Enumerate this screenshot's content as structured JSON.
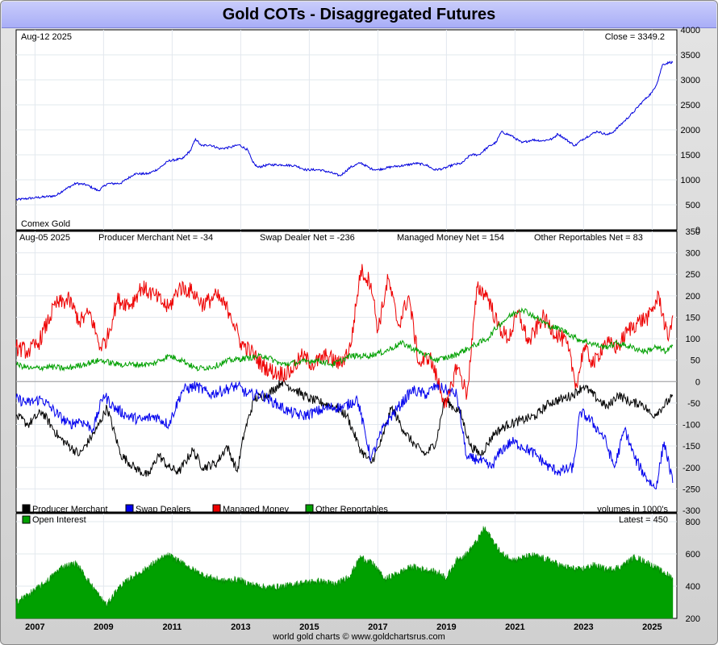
{
  "page": {
    "title": "Gold COTs - Disaggregated Futures",
    "credit": "world gold charts © www.goldchartsrus.com"
  },
  "chart_data": [
    {
      "id": "price",
      "type": "line",
      "date_label": "Aug-12  2025",
      "close_label": "Close = 3349.2",
      "series_label": "Comex Gold",
      "ylim": [
        0,
        4000
      ],
      "yticks": [
        0,
        500,
        1000,
        1500,
        2000,
        2500,
        3000,
        3500,
        4000
      ],
      "xlim": [
        2006.45,
        2025.72
      ],
      "color": "#0000dd",
      "series": [
        {
          "name": "Comex Gold",
          "x": [
            2006.45,
            2006.7,
            2007.0,
            2007.3,
            2007.6,
            2007.85,
            2008.2,
            2008.5,
            2008.85,
            2009.1,
            2009.5,
            2009.9,
            2010.3,
            2010.6,
            2010.9,
            2011.3,
            2011.55,
            2011.68,
            2011.85,
            2012.1,
            2012.4,
            2012.7,
            2012.95,
            2013.2,
            2013.35,
            2013.5,
            2013.8,
            2014.2,
            2014.6,
            2014.9,
            2015.3,
            2015.6,
            2015.9,
            2016.2,
            2016.5,
            2016.8,
            2017.0,
            2017.4,
            2017.8,
            2018.1,
            2018.4,
            2018.65,
            2018.9,
            2019.2,
            2019.45,
            2019.7,
            2019.95,
            2020.2,
            2020.45,
            2020.6,
            2020.9,
            2021.2,
            2021.5,
            2021.8,
            2022.1,
            2022.25,
            2022.5,
            2022.75,
            2022.95,
            2023.2,
            2023.4,
            2023.7,
            2023.85,
            2024.0,
            2024.2,
            2024.45,
            2024.7,
            2024.85,
            2025.0,
            2025.15,
            2025.3,
            2025.5,
            2025.6
          ],
          "y": [
            600,
            620,
            640,
            660,
            680,
            800,
            930,
            900,
            780,
            920,
            930,
            1120,
            1120,
            1220,
            1380,
            1420,
            1600,
            1820,
            1680,
            1700,
            1620,
            1650,
            1700,
            1600,
            1350,
            1250,
            1300,
            1300,
            1280,
            1200,
            1200,
            1150,
            1080,
            1250,
            1340,
            1220,
            1200,
            1260,
            1290,
            1330,
            1300,
            1200,
            1220,
            1300,
            1330,
            1500,
            1500,
            1650,
            1750,
            1960,
            1880,
            1740,
            1800,
            1780,
            1820,
            1920,
            1800,
            1680,
            1800,
            1900,
            1970,
            1900,
            1950,
            2050,
            2180,
            2350,
            2550,
            2650,
            2750,
            2950,
            3300,
            3350,
            3349
          ]
        }
      ]
    },
    {
      "id": "cot",
      "type": "line",
      "date_label": "Aug-05  2025",
      "ylim": [
        -300,
        350
      ],
      "yticks": [
        -300,
        -250,
        -200,
        -150,
        -100,
        -50,
        0,
        50,
        100,
        150,
        200,
        250,
        300,
        350
      ],
      "xlim": [
        2006.45,
        2025.72
      ],
      "net_labels": [
        "Producer Merchant Net = -34",
        "Swap Dealer Net = -236",
        "Managed Money Net = 154",
        "Other Reportables Net = 83"
      ],
      "volume_note": "volumes in 1000's",
      "legend": [
        {
          "label": "Producer Merchant",
          "color": "#000000"
        },
        {
          "label": "Swap Dealers",
          "color": "#0000ee"
        },
        {
          "label": "Managed Money",
          "color": "#ee0000"
        },
        {
          "label": "Other Reportables",
          "color": "#00a000"
        }
      ],
      "series": [
        {
          "name": "Producer Merchant",
          "color": "#000000",
          "x": [
            2006.45,
            2006.8,
            2007.2,
            2007.7,
            2008.3,
            2008.8,
            2009.1,
            2009.5,
            2009.9,
            2010.3,
            2010.6,
            2010.9,
            2011.2,
            2011.6,
            2011.9,
            2012.3,
            2012.6,
            2012.9,
            2013.1,
            2013.4,
            2013.8,
            2014.2,
            2014.6,
            2015.0,
            2015.4,
            2015.8,
            2016.1,
            2016.5,
            2016.8,
            2017.1,
            2017.4,
            2017.8,
            2018.1,
            2018.4,
            2018.7,
            2018.95,
            2019.2,
            2019.4,
            2019.7,
            2020.0,
            2020.4,
            2020.8,
            2021.2,
            2021.6,
            2022.0,
            2022.4,
            2022.7,
            2023.0,
            2023.4,
            2023.7,
            2024.0,
            2024.4,
            2024.7,
            2025.0,
            2025.3,
            2025.6
          ],
          "y": [
            -80,
            -100,
            -70,
            -130,
            -170,
            -110,
            -60,
            -170,
            -200,
            -220,
            -170,
            -200,
            -210,
            -160,
            -200,
            -190,
            -150,
            -210,
            -120,
            -40,
            -30,
            0,
            -20,
            -40,
            -50,
            -60,
            -80,
            -160,
            -190,
            -140,
            -60,
            -120,
            -150,
            -170,
            -140,
            -40,
            -60,
            -70,
            -150,
            -170,
            -120,
            -100,
            -90,
            -80,
            -50,
            -40,
            -30,
            -10,
            -40,
            -60,
            -30,
            -50,
            -50,
            -80,
            -60,
            -34
          ]
        },
        {
          "name": "Swap Dealers",
          "color": "#0000ee",
          "x": [
            2006.45,
            2006.8,
            2007.2,
            2007.7,
            2008.0,
            2008.3,
            2008.7,
            2009.0,
            2009.3,
            2009.7,
            2010.1,
            2010.5,
            2010.9,
            2011.3,
            2011.7,
            2012.1,
            2012.5,
            2012.9,
            2013.2,
            2013.6,
            2014.0,
            2014.4,
            2014.8,
            2015.2,
            2015.6,
            2016.0,
            2016.4,
            2016.8,
            2017.2,
            2017.6,
            2018.0,
            2018.4,
            2018.7,
            2019.0,
            2019.3,
            2019.6,
            2019.9,
            2020.3,
            2020.6,
            2020.9,
            2021.2,
            2021.6,
            2022.0,
            2022.3,
            2022.7,
            2022.9,
            2023.2,
            2023.6,
            2023.9,
            2024.2,
            2024.5,
            2024.8,
            2025.1,
            2025.35,
            2025.6
          ],
          "y": [
            -40,
            -50,
            -40,
            -80,
            -100,
            -90,
            -110,
            -30,
            -60,
            -80,
            -90,
            -80,
            -100,
            -20,
            -10,
            -30,
            -20,
            -10,
            -30,
            -30,
            -50,
            -70,
            -80,
            -70,
            -60,
            -60,
            -40,
            -180,
            -100,
            -60,
            -20,
            -30,
            -10,
            -20,
            -30,
            -180,
            -180,
            -200,
            -160,
            -140,
            -150,
            -170,
            -200,
            -210,
            -200,
            -70,
            -90,
            -130,
            -200,
            -110,
            -180,
            -220,
            -250,
            -140,
            -236
          ]
        },
        {
          "name": "Managed Money",
          "color": "#ee0000",
          "x": [
            2006.45,
            2006.8,
            2007.1,
            2007.6,
            2008.0,
            2008.3,
            2008.6,
            2008.9,
            2009.1,
            2009.4,
            2009.8,
            2010.1,
            2010.5,
            2010.9,
            2011.2,
            2011.6,
            2011.9,
            2012.3,
            2012.7,
            2013.0,
            2013.3,
            2013.6,
            2014.0,
            2014.4,
            2014.8,
            2015.1,
            2015.5,
            2015.9,
            2016.2,
            2016.5,
            2016.8,
            2017.0,
            2017.3,
            2017.6,
            2017.9,
            2018.2,
            2018.5,
            2018.8,
            2019.0,
            2019.3,
            2019.6,
            2019.9,
            2020.2,
            2020.5,
            2020.8,
            2021.1,
            2021.4,
            2021.8,
            2022.1,
            2022.5,
            2022.8,
            2023.0,
            2023.3,
            2023.6,
            2024.0,
            2024.3,
            2024.6,
            2024.9,
            2025.2,
            2025.45,
            2025.6
          ],
          "y": [
            80,
            70,
            90,
            180,
            190,
            140,
            160,
            80,
            100,
            190,
            180,
            220,
            200,
            170,
            220,
            210,
            180,
            200,
            160,
            90,
            70,
            40,
            20,
            20,
            60,
            40,
            60,
            40,
            80,
            260,
            230,
            120,
            240,
            130,
            200,
            40,
            60,
            -10,
            -60,
            40,
            -30,
            220,
            200,
            130,
            100,
            160,
            90,
            150,
            120,
            90,
            -10,
            80,
            40,
            90,
            80,
            120,
            140,
            150,
            200,
            100,
            154
          ]
        },
        {
          "name": "Other Reportables",
          "color": "#00a000",
          "x": [
            2006.45,
            2006.9,
            2007.4,
            2007.9,
            2008.4,
            2008.9,
            2009.4,
            2009.9,
            2010.4,
            2010.9,
            2011.3,
            2011.7,
            2012.2,
            2012.7,
            2013.2,
            2013.7,
            2014.2,
            2014.7,
            2015.2,
            2015.7,
            2016.2,
            2016.7,
            2017.2,
            2017.7,
            2018.2,
            2018.7,
            2019.2,
            2019.7,
            2020.2,
            2020.5,
            2020.8,
            2021.2,
            2021.6,
            2022.0,
            2022.4,
            2022.8,
            2023.2,
            2023.6,
            2024.0,
            2024.4,
            2024.8,
            2025.1,
            2025.4,
            2025.6
          ],
          "y": [
            40,
            30,
            35,
            30,
            40,
            50,
            40,
            40,
            40,
            60,
            50,
            30,
            35,
            50,
            55,
            60,
            40,
            45,
            50,
            40,
            60,
            60,
            70,
            90,
            70,
            50,
            60,
            80,
            100,
            130,
            150,
            170,
            150,
            130,
            120,
            100,
            90,
            80,
            90,
            80,
            70,
            80,
            70,
            83
          ]
        }
      ]
    },
    {
      "id": "open_interest",
      "type": "area",
      "label": "Open Interest",
      "latest_label": "Latest = 450",
      "color": "#00a000",
      "ylim": [
        200,
        850
      ],
      "yticks": [
        200,
        400,
        600,
        800
      ],
      "xlim": [
        2006.45,
        2025.72
      ],
      "xticks": [
        "2007",
        "2009",
        "2011",
        "2013",
        "2015",
        "2017",
        "2019",
        "2021",
        "2023",
        "2025"
      ],
      "xtick_values": [
        2007,
        2009,
        2011,
        2013,
        2015,
        2017,
        2019,
        2021,
        2023,
        2025
      ],
      "series": [
        {
          "name": "Open Interest",
          "x": [
            2006.45,
            2006.9,
            2007.3,
            2007.8,
            2008.2,
            2008.6,
            2008.9,
            2009.1,
            2009.4,
            2009.8,
            2010.2,
            2010.6,
            2010.9,
            2011.3,
            2011.7,
            2012.0,
            2012.5,
            2012.9,
            2013.3,
            2013.8,
            2014.3,
            2014.8,
            2015.3,
            2015.8,
            2016.2,
            2016.5,
            2016.9,
            2017.2,
            2017.6,
            2018.0,
            2018.4,
            2018.8,
            2019.0,
            2019.3,
            2019.6,
            2019.9,
            2020.1,
            2020.3,
            2020.6,
            2021.0,
            2021.5,
            2022.0,
            2022.4,
            2022.9,
            2023.3,
            2023.7,
            2024.1,
            2024.5,
            2024.9,
            2025.2,
            2025.6
          ],
          "y": [
            300,
            360,
            420,
            520,
            540,
            420,
            330,
            280,
            380,
            450,
            500,
            560,
            590,
            540,
            490,
            460,
            430,
            440,
            410,
            390,
            400,
            420,
            430,
            410,
            470,
            580,
            530,
            440,
            480,
            520,
            500,
            480,
            450,
            560,
            600,
            680,
            760,
            700,
            600,
            560,
            590,
            560,
            520,
            500,
            530,
            500,
            520,
            580,
            540,
            500,
            450
          ]
        }
      ]
    }
  ]
}
